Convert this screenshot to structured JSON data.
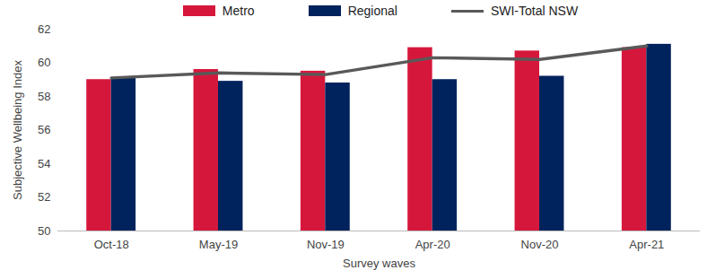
{
  "chart_data": {
    "type": "bar",
    "xlabel": "Survey waves",
    "ylabel": "Subjective Wellbeing Index",
    "categories": [
      "Oct-18",
      "May-19",
      "Nov-19",
      "Apr-20",
      "Nov-20",
      "Apr-21"
    ],
    "series": [
      {
        "name": "Metro",
        "type": "bar",
        "color": "#d6173c",
        "values": [
          59.0,
          59.6,
          59.5,
          60.9,
          60.7,
          60.9
        ]
      },
      {
        "name": "Regional",
        "type": "bar",
        "color": "#00235d",
        "values": [
          59.1,
          58.9,
          58.8,
          59.0,
          59.2,
          61.1
        ]
      },
      {
        "name": "SWI-Total NSW",
        "type": "line",
        "color": "#595959",
        "values": [
          59.1,
          59.4,
          59.3,
          60.3,
          60.2,
          61.0
        ]
      }
    ],
    "ylim": [
      50,
      62
    ],
    "yticks": [
      50,
      52,
      54,
      56,
      58,
      60,
      62
    ],
    "grid": false,
    "legend": "top"
  }
}
